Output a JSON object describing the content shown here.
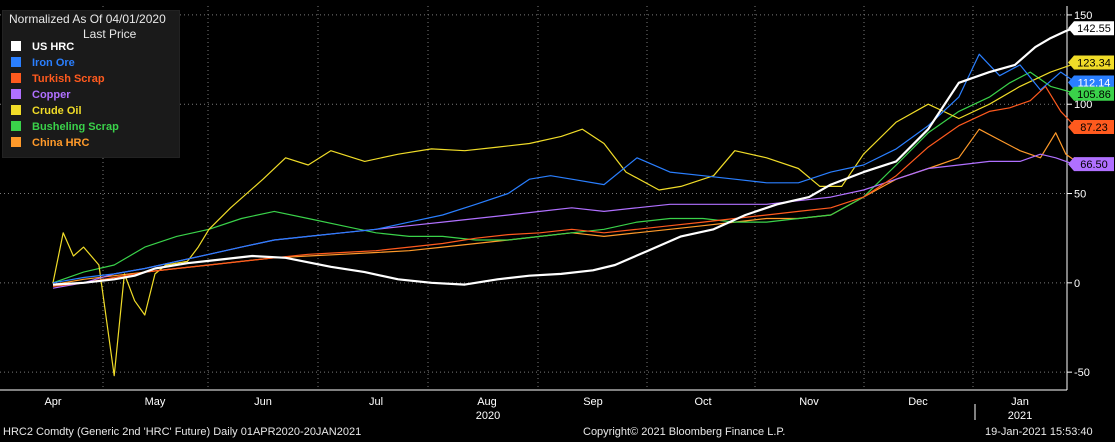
{
  "chart_data": {
    "type": "line",
    "title": "Normalized As Of 04/01/2020",
    "subtitle": "Last Price",
    "ylim": [
      -60,
      155
    ],
    "yticks": [
      -50,
      0,
      50,
      100,
      150
    ],
    "ytick_labels": [
      "-50",
      "0",
      "50",
      "100",
      "150"
    ],
    "months": [
      "Apr",
      "May",
      "Jun",
      "Jul",
      "Aug",
      "Sep",
      "Oct",
      "Nov",
      "Dec",
      "Jan"
    ],
    "year_labels": [
      "2020",
      "2021"
    ],
    "grid": true,
    "legend_position": "top-left",
    "series": [
      {
        "name": "US HRC",
        "color": "#ffffff",
        "last_label": "142.55",
        "points": [
          [
            0,
            -1
          ],
          [
            0.3,
            0
          ],
          [
            0.6,
            2
          ],
          [
            0.8,
            4
          ],
          [
            1.0,
            8
          ],
          [
            1.3,
            11
          ],
          [
            1.6,
            13
          ],
          [
            1.9,
            15
          ],
          [
            2.2,
            14
          ],
          [
            2.6,
            9
          ],
          [
            2.9,
            6
          ],
          [
            3.2,
            2
          ],
          [
            3.5,
            0
          ],
          [
            3.8,
            -1
          ],
          [
            4.1,
            2
          ],
          [
            4.4,
            4
          ],
          [
            4.7,
            5
          ],
          [
            5.0,
            7
          ],
          [
            5.2,
            10
          ],
          [
            5.5,
            18
          ],
          [
            5.8,
            26
          ],
          [
            6.1,
            30
          ],
          [
            6.4,
            38
          ],
          [
            6.7,
            44
          ],
          [
            7.0,
            48
          ],
          [
            7.2,
            55
          ],
          [
            7.5,
            62
          ],
          [
            7.8,
            68
          ],
          [
            8.1,
            86
          ],
          [
            8.4,
            112
          ],
          [
            8.7,
            118
          ],
          [
            8.95,
            122
          ],
          [
            9.15,
            132
          ],
          [
            9.3,
            137
          ],
          [
            9.45,
            141
          ],
          [
            9.55,
            143
          ]
        ]
      },
      {
        "name": "Iron Ore",
        "color": "#2a7fff",
        "last_label": "112.14",
        "points": [
          [
            0,
            0
          ],
          [
            0.3,
            3
          ],
          [
            0.6,
            5
          ],
          [
            0.9,
            8
          ],
          [
            1.2,
            12
          ],
          [
            1.5,
            16
          ],
          [
            1.8,
            20
          ],
          [
            2.1,
            24
          ],
          [
            2.4,
            26
          ],
          [
            2.7,
            28
          ],
          [
            3.0,
            30
          ],
          [
            3.3,
            34
          ],
          [
            3.6,
            38
          ],
          [
            3.9,
            44
          ],
          [
            4.2,
            50
          ],
          [
            4.4,
            58
          ],
          [
            4.6,
            60
          ],
          [
            4.8,
            58
          ],
          [
            5.1,
            55
          ],
          [
            5.4,
            70
          ],
          [
            5.7,
            62
          ],
          [
            6.0,
            60
          ],
          [
            6.3,
            58
          ],
          [
            6.6,
            56
          ],
          [
            6.9,
            56
          ],
          [
            7.2,
            62
          ],
          [
            7.5,
            66
          ],
          [
            7.8,
            75
          ],
          [
            8.1,
            88
          ],
          [
            8.4,
            104
          ],
          [
            8.6,
            128
          ],
          [
            8.8,
            116
          ],
          [
            9.0,
            122
          ],
          [
            9.2,
            108
          ],
          [
            9.4,
            118
          ],
          [
            9.55,
            112
          ]
        ]
      },
      {
        "name": "Turkish Scrap",
        "color": "#ff5a1e",
        "last_label": "87.23",
        "points": [
          [
            0,
            -2
          ],
          [
            0.3,
            0
          ],
          [
            0.6,
            3
          ],
          [
            0.9,
            6
          ],
          [
            1.2,
            8
          ],
          [
            1.5,
            10
          ],
          [
            1.8,
            12
          ],
          [
            2.1,
            14
          ],
          [
            2.4,
            16
          ],
          [
            2.7,
            17
          ],
          [
            3.0,
            18
          ],
          [
            3.3,
            20
          ],
          [
            3.6,
            22
          ],
          [
            3.9,
            25
          ],
          [
            4.2,
            27
          ],
          [
            4.5,
            28
          ],
          [
            4.8,
            30
          ],
          [
            5.1,
            28
          ],
          [
            5.4,
            30
          ],
          [
            5.7,
            32
          ],
          [
            6.0,
            34
          ],
          [
            6.3,
            36
          ],
          [
            6.6,
            38
          ],
          [
            6.9,
            40
          ],
          [
            7.2,
            42
          ],
          [
            7.5,
            48
          ],
          [
            7.8,
            60
          ],
          [
            8.1,
            76
          ],
          [
            8.4,
            88
          ],
          [
            8.7,
            96
          ],
          [
            8.9,
            98
          ],
          [
            9.1,
            102
          ],
          [
            9.25,
            110
          ],
          [
            9.4,
            96
          ],
          [
            9.55,
            87
          ]
        ]
      },
      {
        "name": "Copper",
        "color": "#b070ff",
        "last_label": "66.50",
        "points": [
          [
            0,
            -3
          ],
          [
            0.3,
            0
          ],
          [
            0.6,
            5
          ],
          [
            0.9,
            8
          ],
          [
            1.2,
            12
          ],
          [
            1.5,
            16
          ],
          [
            1.8,
            20
          ],
          [
            2.1,
            24
          ],
          [
            2.4,
            26
          ],
          [
            2.7,
            28
          ],
          [
            3.0,
            30
          ],
          [
            3.3,
            32
          ],
          [
            3.6,
            34
          ],
          [
            3.9,
            36
          ],
          [
            4.2,
            38
          ],
          [
            4.5,
            40
          ],
          [
            4.8,
            42
          ],
          [
            5.1,
            40
          ],
          [
            5.4,
            42
          ],
          [
            5.7,
            44
          ],
          [
            6.0,
            44
          ],
          [
            6.3,
            44
          ],
          [
            6.6,
            44
          ],
          [
            6.9,
            46
          ],
          [
            7.2,
            48
          ],
          [
            7.5,
            52
          ],
          [
            7.8,
            58
          ],
          [
            8.1,
            64
          ],
          [
            8.4,
            66
          ],
          [
            8.7,
            68
          ],
          [
            9.0,
            68
          ],
          [
            9.2,
            72
          ],
          [
            9.35,
            70
          ],
          [
            9.55,
            66
          ]
        ]
      },
      {
        "name": "Crude Oil",
        "color": "#f0dc28",
        "last_label": "123.34",
        "points": [
          [
            0,
            0
          ],
          [
            0.1,
            28
          ],
          [
            0.2,
            15
          ],
          [
            0.3,
            20
          ],
          [
            0.45,
            10
          ],
          [
            0.6,
            -52
          ],
          [
            0.7,
            5
          ],
          [
            0.8,
            -10
          ],
          [
            0.9,
            -18
          ],
          [
            1.0,
            5
          ],
          [
            1.1,
            10
          ],
          [
            1.3,
            12
          ],
          [
            1.4,
            20
          ],
          [
            1.5,
            30
          ],
          [
            1.7,
            42
          ],
          [
            2.0,
            58
          ],
          [
            2.2,
            70
          ],
          [
            2.4,
            66
          ],
          [
            2.6,
            74
          ],
          [
            2.9,
            68
          ],
          [
            3.2,
            72
          ],
          [
            3.5,
            75
          ],
          [
            3.8,
            74
          ],
          [
            4.1,
            76
          ],
          [
            4.4,
            78
          ],
          [
            4.7,
            82
          ],
          [
            4.9,
            86
          ],
          [
            5.1,
            78
          ],
          [
            5.3,
            62
          ],
          [
            5.6,
            52
          ],
          [
            5.8,
            54
          ],
          [
            6.1,
            60
          ],
          [
            6.3,
            74
          ],
          [
            6.6,
            70
          ],
          [
            6.9,
            64
          ],
          [
            7.1,
            54
          ],
          [
            7.3,
            54
          ],
          [
            7.5,
            72
          ],
          [
            7.8,
            90
          ],
          [
            8.1,
            100
          ],
          [
            8.4,
            92
          ],
          [
            8.7,
            100
          ],
          [
            9.0,
            110
          ],
          [
            9.3,
            118
          ],
          [
            9.55,
            123
          ]
        ]
      },
      {
        "name": "Busheling Scrap",
        "color": "#3ad24a",
        "last_label": "105.86",
        "points": [
          [
            0,
            0
          ],
          [
            0.3,
            6
          ],
          [
            0.6,
            10
          ],
          [
            0.9,
            20
          ],
          [
            1.2,
            26
          ],
          [
            1.5,
            30
          ],
          [
            1.8,
            36
          ],
          [
            2.1,
            40
          ],
          [
            2.4,
            36
          ],
          [
            2.7,
            32
          ],
          [
            3.0,
            28
          ],
          [
            3.3,
            26
          ],
          [
            3.6,
            26
          ],
          [
            3.9,
            24
          ],
          [
            4.2,
            24
          ],
          [
            4.5,
            26
          ],
          [
            4.8,
            28
          ],
          [
            5.1,
            30
          ],
          [
            5.4,
            34
          ],
          [
            5.7,
            36
          ],
          [
            6.0,
            36
          ],
          [
            6.3,
            34
          ],
          [
            6.6,
            34
          ],
          [
            6.9,
            36
          ],
          [
            7.2,
            38
          ],
          [
            7.5,
            48
          ],
          [
            7.8,
            66
          ],
          [
            8.1,
            84
          ],
          [
            8.4,
            96
          ],
          [
            8.7,
            104
          ],
          [
            8.9,
            112
          ],
          [
            9.1,
            118
          ],
          [
            9.3,
            110
          ],
          [
            9.55,
            106
          ]
        ]
      },
      {
        "name": "China HRC",
        "color": "#ff9a2a",
        "last_label": "",
        "points": [
          [
            0,
            -1
          ],
          [
            0.3,
            2
          ],
          [
            0.6,
            4
          ],
          [
            0.9,
            6
          ],
          [
            1.2,
            8
          ],
          [
            1.5,
            10
          ],
          [
            1.8,
            12
          ],
          [
            2.1,
            14
          ],
          [
            2.4,
            15
          ],
          [
            2.7,
            16
          ],
          [
            3.0,
            17
          ],
          [
            3.3,
            18
          ],
          [
            3.6,
            20
          ],
          [
            3.9,
            22
          ],
          [
            4.2,
            24
          ],
          [
            4.5,
            26
          ],
          [
            4.8,
            28
          ],
          [
            5.1,
            26
          ],
          [
            5.4,
            28
          ],
          [
            5.7,
            30
          ],
          [
            6.0,
            32
          ],
          [
            6.3,
            34
          ],
          [
            6.6,
            36
          ],
          [
            6.9,
            36
          ],
          [
            7.2,
            38
          ],
          [
            7.5,
            48
          ],
          [
            7.8,
            58
          ],
          [
            8.1,
            64
          ],
          [
            8.4,
            70
          ],
          [
            8.6,
            86
          ],
          [
            8.8,
            80
          ],
          [
            9.0,
            74
          ],
          [
            9.2,
            70
          ],
          [
            9.35,
            84
          ],
          [
            9.45,
            72
          ],
          [
            9.55,
            68
          ]
        ]
      }
    ]
  },
  "last_value_labels": [
    {
      "series": "US HRC",
      "text": "142.55",
      "bg": "#ffffff",
      "fg": "#000000",
      "value": 142.55
    },
    {
      "series": "Crude Oil",
      "text": "123.34",
      "bg": "#f0dc28",
      "fg": "#000000",
      "value": 123.34
    },
    {
      "series": "Iron Ore",
      "text": "112.14",
      "bg": "#2a7fff",
      "fg": "#ffffff",
      "value": 112.14
    },
    {
      "series": "Busheling Scrap",
      "text": "105.86",
      "bg": "#3ad24a",
      "fg": "#000000",
      "value": 105.86
    },
    {
      "series": "Turkish Scrap",
      "text": "87.23",
      "bg": "#ff5a1e",
      "fg": "#000000",
      "value": 87.23
    },
    {
      "series": "Copper",
      "text": "66.50",
      "bg": "#b070ff",
      "fg": "#000000",
      "value": 66.5
    }
  ],
  "footer": {
    "left": "HRC2 Comdty (Generic 2nd 'HRC' Future)  Daily 01APR2020-20JAN2021",
    "center": "Copyright© 2021 Bloomberg Finance L.P.",
    "right": "19-Jan-2021 15:53:40"
  }
}
